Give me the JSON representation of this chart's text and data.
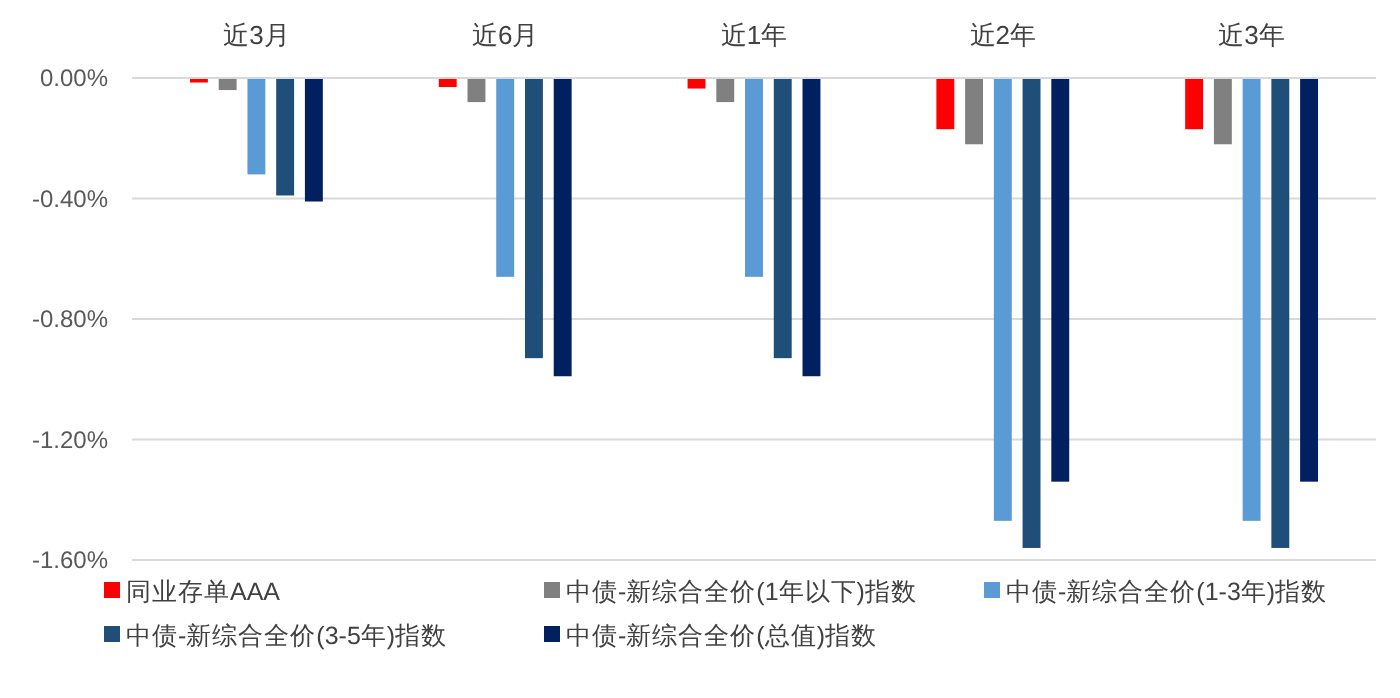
{
  "chart_data": {
    "type": "bar",
    "categories": [
      "近3月",
      "近6月",
      "近1年",
      "近2年",
      "近3年"
    ],
    "series": [
      {
        "name": "同业存单AAA",
        "color": "#ff0000",
        "values": [
          -0.015,
          -0.03,
          -0.035,
          -0.17,
          -0.17
        ]
      },
      {
        "name": "中债-新综合全价(1年以下)指数",
        "color": "#808080",
        "values": [
          -0.04,
          -0.08,
          -0.08,
          -0.22,
          -0.22
        ]
      },
      {
        "name": "中债-新综合全价(1-3年)指数",
        "color": "#5b9bd5",
        "values": [
          -0.32,
          -0.66,
          -0.66,
          -1.47,
          -1.47
        ]
      },
      {
        "name": "中债-新综合全价(3-5年)指数",
        "color": "#1f4e79",
        "values": [
          -0.39,
          -0.93,
          -0.93,
          -1.56,
          -1.56
        ]
      },
      {
        "name": "中债-新综合全价(总值)指数",
        "color": "#002060",
        "values": [
          -0.41,
          -0.99,
          -0.99,
          -1.34,
          -1.34
        ]
      }
    ],
    "ylim": [
      -1.6,
      0
    ],
    "yticks": [
      {
        "value": 0,
        "label": "0.00%"
      },
      {
        "value": -0.4,
        "label": "-0.40%"
      },
      {
        "value": -0.8,
        "label": "-0.80%"
      },
      {
        "value": -1.2,
        "label": "-1.20%"
      },
      {
        "value": -1.6,
        "label": "-1.60%"
      }
    ],
    "grid": "y",
    "legend": "bottom"
  }
}
